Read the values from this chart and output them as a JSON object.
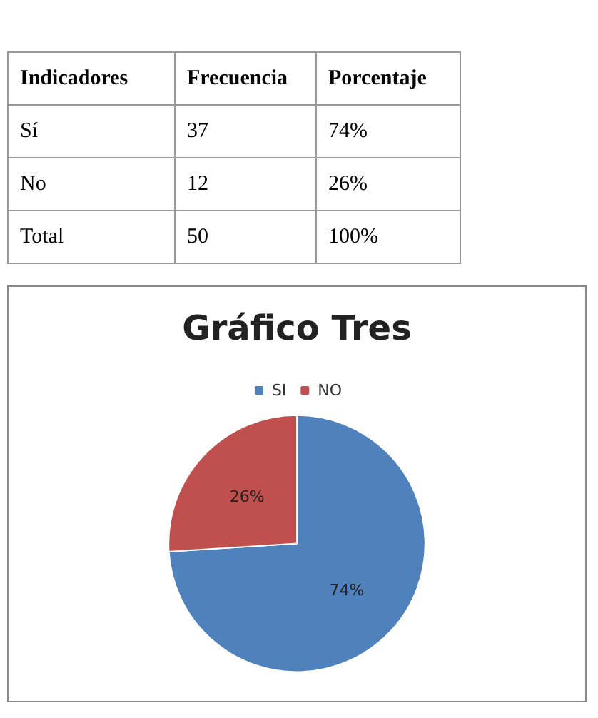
{
  "chart_data": [
    {
      "type": "other",
      "annotations": [
        "Indicadores",
        "Frecuencia",
        "Porcentaje",
        "Sí",
        "37",
        "74%",
        "No",
        "12",
        "26%",
        "Total",
        "50",
        "100%"
      ]
    },
    {
      "type": "pie",
      "title": "Gráfico Tres",
      "categories": [
        "SI",
        "NO"
      ],
      "values": [
        74,
        26
      ],
      "colors": [
        "#4f81bd",
        "#c0504d"
      ],
      "value_labels": [
        "74%",
        "26%"
      ],
      "legend": "top"
    }
  ]
}
